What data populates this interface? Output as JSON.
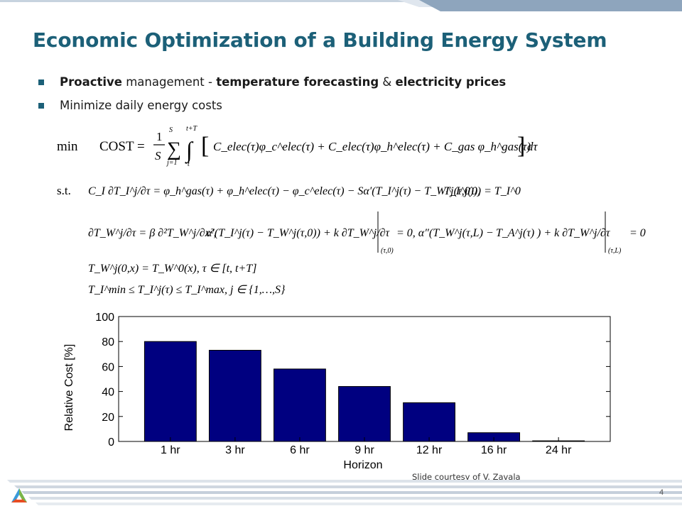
{
  "slide": {
    "title": "Economic Optimization of a Building Energy System",
    "bullet1": {
      "b1": "Proactive",
      "t1": " management - ",
      "b2": "temperature forecasting",
      "t2": " & ",
      "b3": "electricity prices"
    },
    "bullet2": "Minimize daily energy costs",
    "credit": "Slide courtesy of V. Zavala",
    "page_number": "4"
  },
  "colors": {
    "title": "#1c6078",
    "bar_fill": "#000080",
    "highlight_red": "#e00000",
    "footer_stripe": "#c5cfdb"
  },
  "equations": {
    "min": "min",
    "cost": "COST =",
    "st": "s.t.",
    "eq1": "C_elec(τ)φ_c^elec(τ) + C_elec(τ)φ_h^elec(τ) + C_gas φ_h^gas(τ)",
    "eq2a": "C_I ∂T_I^j/∂τ = φ_h^gas(τ) + φ_h^elec(τ) − φ_c^elec(τ) − Sα′(T_I^j(τ) − T_W^j(τ,0)),",
    "eq2b": "T_I^j(0) = T_I^0",
    "eq3": "∂T_W^j/∂τ = β ∂²T_W^j/∂x²,",
    "eq4": "T_W^j(0,x) = T_W^0(x), τ ∈ [t, t+T]",
    "eq5": "T_I^min ≤ T_I^j(τ) ≤ T_I^max, j ∈ {1,…,S}"
  },
  "chart_data": {
    "type": "bar",
    "categories": [
      "1 hr",
      "3 hr",
      "6 hr",
      "9 hr",
      "12 hr",
      "16 hr",
      "24 hr"
    ],
    "values": [
      80,
      73,
      58,
      44,
      31,
      7,
      0.5
    ],
    "xlabel": "Horizon",
    "ylabel": "Relative Cost [%]",
    "ylim": [
      0,
      100
    ],
    "yticks": [
      0,
      20,
      40,
      60,
      80,
      100
    ],
    "grid": false
  }
}
